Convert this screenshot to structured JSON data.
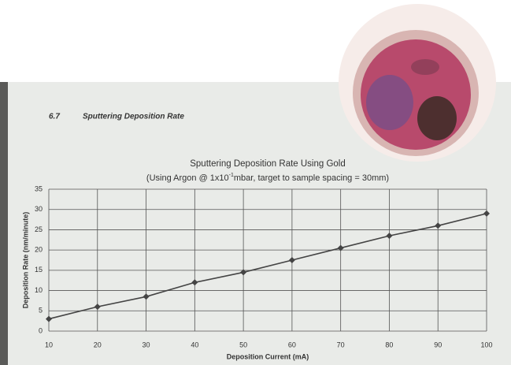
{
  "heading": {
    "number": "6.7",
    "title": "Sputtering Deposition Rate"
  },
  "chart_data": {
    "type": "line",
    "title": "Sputtering Deposition Rate Using Gold",
    "subtitle_parts": [
      "(Using Argon @ 1x10",
      "-1",
      "mbar, target to sample spacing = 30mm)"
    ],
    "x_label": "Deposition Current (mA)",
    "y_label": "Deposition Rate (nm/minute)",
    "x": [
      10,
      20,
      30,
      40,
      50,
      60,
      70,
      80,
      90,
      100
    ],
    "series": [
      {
        "color": "#444444",
        "values": [
          3,
          6,
          8.5,
          12,
          14.5,
          17.5,
          20.5,
          23.5,
          26,
          29
        ]
      }
    ],
    "xlim": [
      10,
      100
    ],
    "ylim": [
      0,
      35
    ],
    "xticks": [
      10,
      20,
      30,
      40,
      50,
      60,
      70,
      80,
      90,
      100
    ],
    "yticks": [
      0,
      5,
      10,
      15,
      20,
      25,
      30,
      35
    ],
    "grid": true
  }
}
